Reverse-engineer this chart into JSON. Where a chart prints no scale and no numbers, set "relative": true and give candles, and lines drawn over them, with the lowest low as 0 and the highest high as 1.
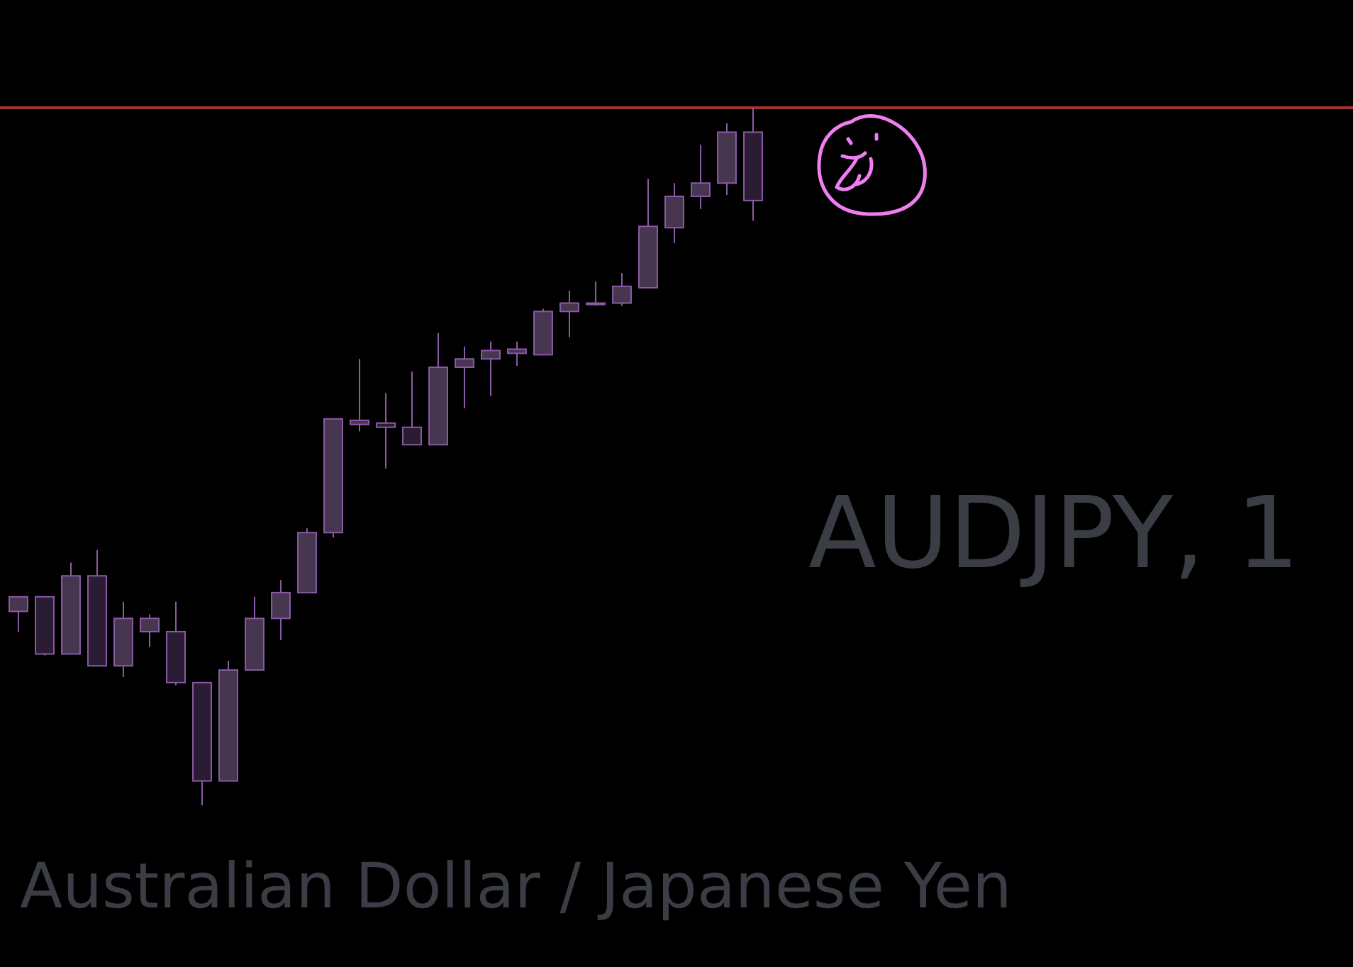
{
  "chart_data": {
    "type": "candlestick",
    "title": "AUDJPY, 1",
    "subtitle": "Australian Dollar / Japanese Yen",
    "relative": true,
    "categories": [
      null,
      null,
      null,
      null,
      null,
      null,
      null,
      null,
      null,
      null,
      null,
      null,
      null,
      null,
      null,
      null,
      null,
      null,
      null,
      null,
      null,
      null,
      null,
      null,
      null,
      null,
      null,
      null,
      null
    ],
    "ohlc": [
      [
        0.278,
        0.299,
        0.249,
        0.299
      ],
      [
        0.299,
        0.299,
        0.215,
        0.217
      ],
      [
        0.217,
        0.348,
        0.217,
        0.329
      ],
      [
        0.329,
        0.366,
        0.2,
        0.2
      ],
      [
        0.2,
        0.292,
        0.184,
        0.268
      ],
      [
        0.249,
        0.274,
        0.227,
        0.268
      ],
      [
        0.249,
        0.292,
        0.172,
        0.176
      ],
      [
        0.176,
        0.176,
        0,
        0.035
      ],
      [
        0.035,
        0.207,
        0.035,
        0.194
      ],
      [
        0.194,
        0.299,
        0.194,
        0.268
      ],
      [
        0.268,
        0.323,
        0.237,
        0.305
      ],
      [
        0.305,
        0.397,
        0.305,
        0.391
      ],
      [
        0.391,
        0.554,
        0.384,
        0.554
      ],
      [
        0.546,
        0.64,
        0.536,
        0.552
      ],
      [
        0.548,
        0.591,
        0.483,
        0.542
      ],
      [
        0.542,
        0.622,
        0.517,
        0.517
      ],
      [
        0.517,
        0.677,
        0.517,
        0.628
      ],
      [
        0.628,
        0.658,
        0.569,
        0.64
      ],
      [
        0.64,
        0.665,
        0.587,
        0.652
      ],
      [
        0.648,
        0.665,
        0.63,
        0.654
      ],
      [
        0.646,
        0.712,
        0.646,
        0.708
      ],
      [
        0.708,
        0.738,
        0.671,
        0.72
      ],
      [
        0.72,
        0.751,
        0.716,
        0.72
      ],
      [
        0.72,
        0.763,
        0.716,
        0.744
      ],
      [
        0.742,
        0.898,
        0.742,
        0.83
      ],
      [
        0.828,
        0.892,
        0.806,
        0.873
      ],
      [
        0.873,
        0.947,
        0.855,
        0.892
      ],
      [
        0.892,
        0.978,
        0.875,
        0.965
      ],
      [
        0.965,
        1,
        0.838,
        0.867
      ]
    ],
    "colors": [
      "#46364f",
      "#2a1c33",
      "#46364f",
      "#2a1c33",
      "#46364f",
      "#46364f",
      "#2a1c33",
      "#2a1c33",
      "#46364f",
      "#46364f",
      "#46364f",
      "#46364f",
      "#46364f",
      "#46364f",
      "#2a1c33",
      "#2a1c33",
      "#46364f",
      "#46364f",
      "#46364f",
      "#46364f",
      "#46364f",
      "#46364f",
      "#46364f",
      "#46364f",
      "#46364f",
      "#46364f",
      "#46364f",
      "#46364f",
      "#2a1c33"
    ],
    "ref_lines": [
      {
        "axis": "y",
        "value": 1,
        "color": "#a8322c"
      }
    ]
  }
}
